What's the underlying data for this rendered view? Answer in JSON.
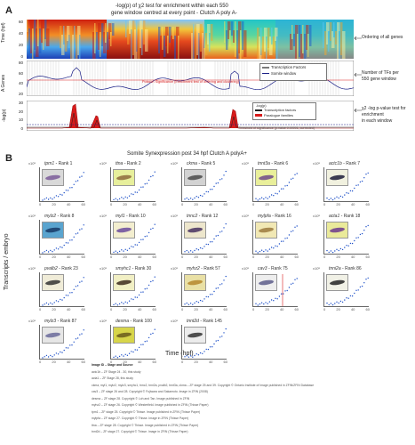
{
  "panel_a": {
    "letter": "A",
    "title_line1": "-log(p) of χ2 test for enrichment within each 550",
    "title_line2": "gene window centred at every point - Clutch A poly A-",
    "heatmap_ylabel": "Time (hpf)",
    "heatmap_ticks": [
      "60",
      "40",
      "20",
      "0"
    ],
    "agenes_ylabel": "A Genes",
    "agenes_ticks": [
      "80",
      "60",
      "40",
      "20"
    ],
    "logp_ylabel": "-log(p)",
    "logp_ticks": [
      "30",
      "20",
      "10",
      "0"
    ],
    "legend_mid_1": "Transcription Factors",
    "legend_mid_2": "Somite window",
    "legend_mid_red": "Poisson Significance (Enrichment test of ordering and clustering)",
    "legend_bot_title": "-log(p)",
    "legend_bot_1": "Transcription factors",
    "legend_bot_2": "Paralogue families",
    "bottom_note": "Threshold of significance (p-value 0.00001, corrected)",
    "right_note_1": "Ordering of all genes",
    "right_note_2": "Number of TFs per",
    "right_note_3": "550 gene window",
    "right_note_4": "χ2 -log p-value test for",
    "right_note_5": "enrichment",
    "right_note_6": "in each window"
  },
  "panel_b": {
    "letter": "B",
    "title": "Somite Synexpression post 34 hpf Clutch A polyA+",
    "ylabel": "Transcripts / embryo",
    "xlabel": "Time (hpf)",
    "x_ticks": [
      "0",
      "20",
      "40",
      "60"
    ],
    "exponent_label": "x10⁵",
    "cells": [
      {
        "name": "tpm1",
        "rank": "Rank 1"
      },
      {
        "name": "ttna",
        "rank": "Rank 2"
      },
      {
        "name": "ckma",
        "rank": "Rank 5"
      },
      {
        "name": "tnnt3a",
        "rank": "Rank 6"
      },
      {
        "name": "actc1b",
        "rank": "Rank 7"
      },
      {
        "name": "mylz2",
        "rank": "Rank 8"
      },
      {
        "name": "myl1",
        "rank": "Rank 10"
      },
      {
        "name": "tnnc2",
        "rank": "Rank 12"
      },
      {
        "name": "mylpfa",
        "rank": "Rank 16"
      },
      {
        "name": "acta1",
        "rank": "Rank 18"
      },
      {
        "name": "pvalb2",
        "rank": "Rank 23"
      },
      {
        "name": "smyhc1",
        "rank": "Rank 30"
      },
      {
        "name": "myhz2",
        "rank": "Rank 57"
      },
      {
        "name": "cav3",
        "rank": "Rank 75"
      },
      {
        "name": "tnni2a",
        "rank": "Rank 86"
      },
      {
        "name": "mylz3",
        "rank": "Rank 87"
      },
      {
        "name": "desma",
        "rank": "Rank 100"
      },
      {
        "name": "tnnt2d",
        "rank": "Rank 145"
      }
    ]
  },
  "footnotes": [
    "Image ID – Stage and Source",
    "actc1b – ZF Stage 24 - 30, this study",
    "acta1 – ZF Stage 28, this study",
    "ckma, myl1, mylz2, mylz3, smyhc1, tnnc2, tnni2a, pvalb2, tnnt3a, ckma – ZF stage 25 and 39. Copyright © Ontario Institute of Image published in ZFIN/ZFIN Database",
    "cav3 – ZF stage 26 and 28. Copyright © Fujiwara and Sakamoto. Image in ZFIN (2008)",
    "desma – ZF stage 28. Copyright © Loh and Tan. Image published in ZFIN",
    "myhz2 – ZF stage 26. Copyright © Westerfield. Image published in ZFIN (Thisse Paper)",
    "tpm1 – ZF stage 25. Copyright © Thisse. Image published in ZFIN (Thisse Paper)",
    "mylpfa – ZF stage 27. Copyright © Thisse. Image in ZFIN (Thisse Paper)",
    "ttna – ZF stage 28. Copyright © Thisse. Image published in ZFIN (Thisse Paper)",
    "tnnt2d – ZF stage 27. Copyright © Thisse. Image in ZFIN (Thisse Paper)"
  ]
}
